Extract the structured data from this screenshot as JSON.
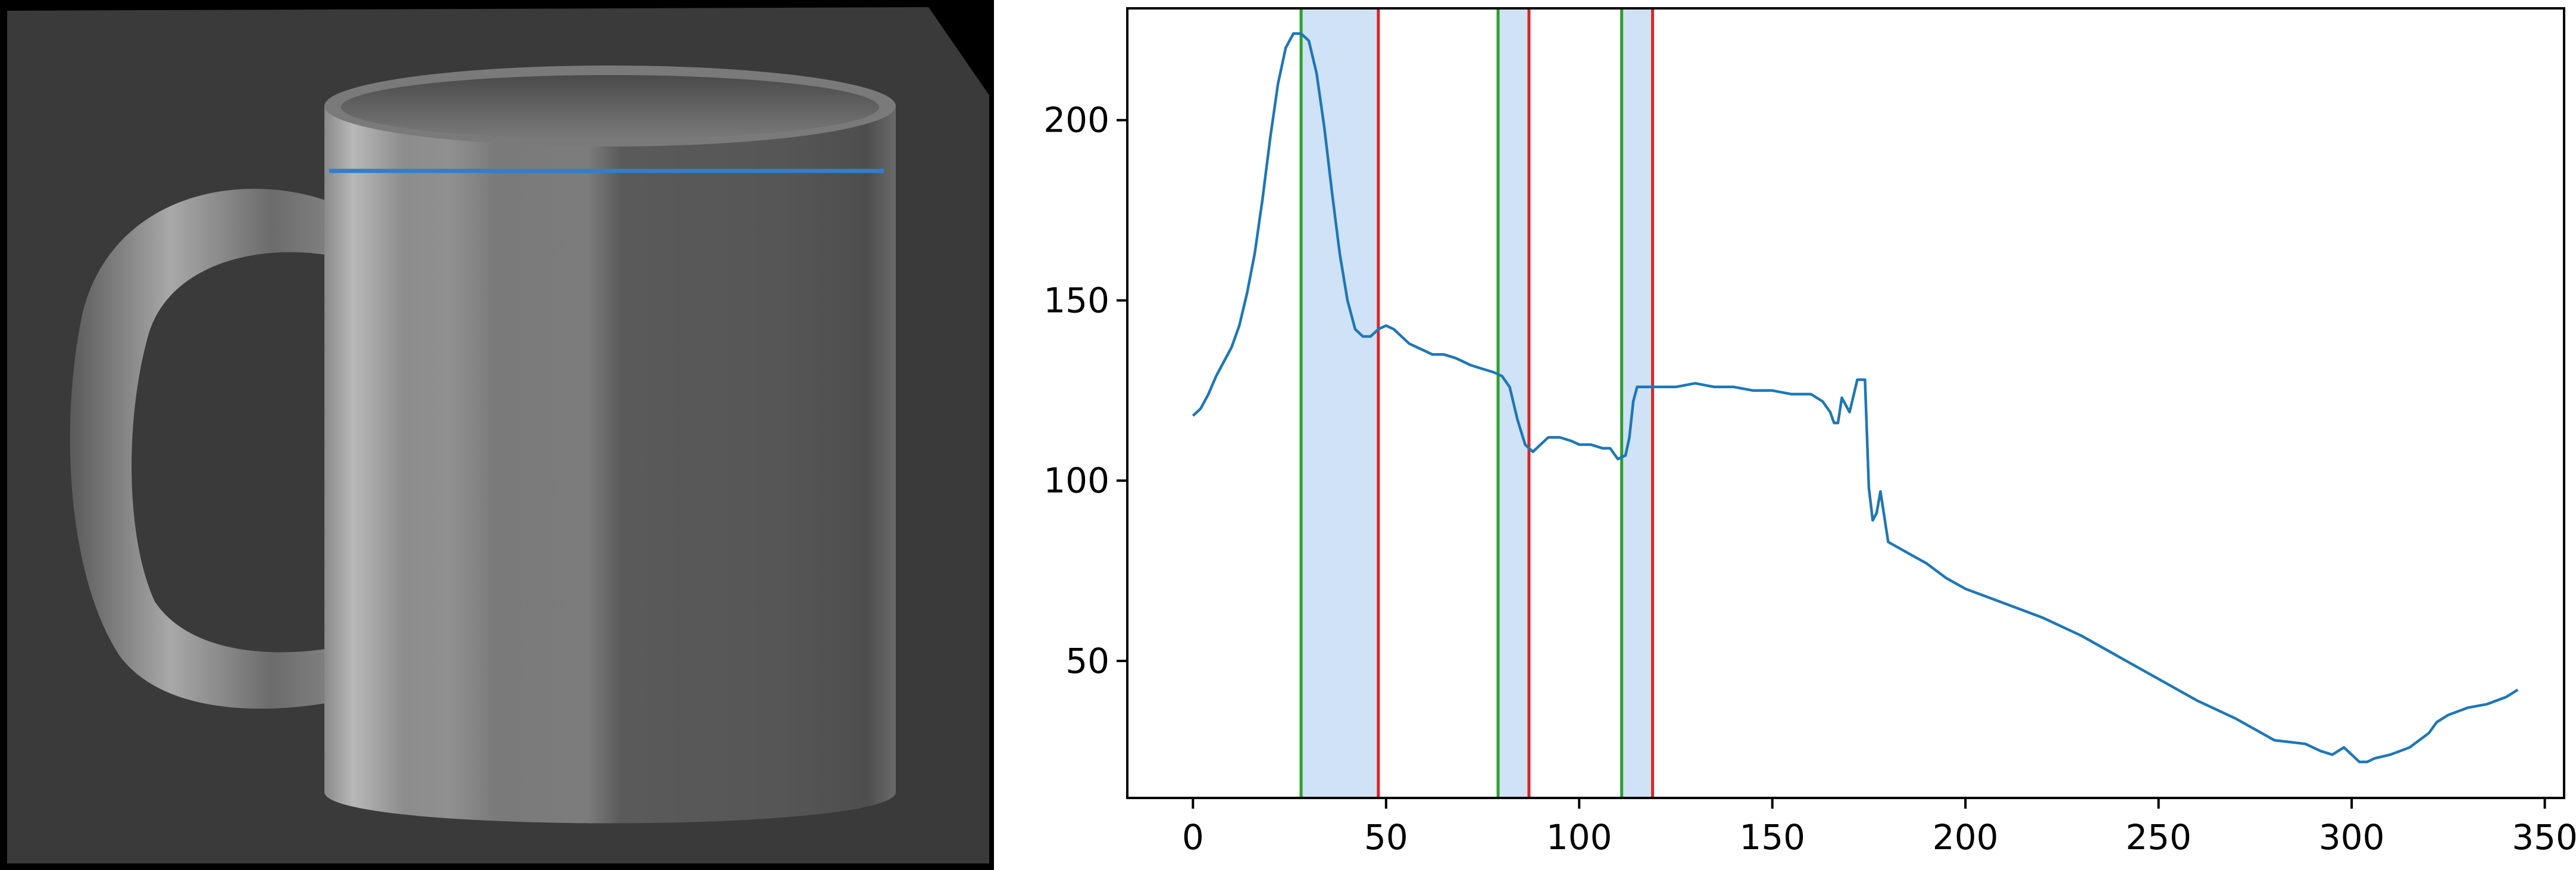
{
  "figure": {
    "left_panel": {
      "content": "3D-rendered mug with a horizontal profile line",
      "background_color": "#000000",
      "mug_color": "#6e6e6e",
      "profile_line_color": "#2f7fd0"
    }
  },
  "chart_data": {
    "type": "line",
    "title": "",
    "xlabel": "",
    "ylabel": "",
    "xlim": [
      -17,
      355
    ],
    "ylim": [
      12,
      231
    ],
    "xticks": [
      0,
      50,
      100,
      150,
      200,
      250,
      300,
      350
    ],
    "yticks": [
      50,
      100,
      150,
      200
    ],
    "grid": false,
    "series": [
      {
        "color": "#1f77b4",
        "x": [
          0,
          2,
          4,
          6,
          8,
          10,
          12,
          14,
          16,
          18,
          20,
          22,
          24,
          26,
          28,
          30,
          32,
          34,
          36,
          38,
          40,
          42,
          44,
          46,
          48,
          50,
          52,
          54,
          56,
          58,
          60,
          62,
          65,
          68,
          72,
          75,
          78,
          80,
          82,
          84,
          86,
          88,
          90,
          92,
          95,
          98,
          100,
          103,
          106,
          108,
          110,
          112,
          113,
          114,
          115,
          116,
          117,
          118,
          120,
          125,
          130,
          135,
          140,
          145,
          150,
          155,
          160,
          163,
          165,
          166,
          167,
          168,
          170,
          172,
          173,
          174,
          175,
          176,
          177,
          178,
          180,
          185,
          190,
          195,
          200,
          210,
          220,
          230,
          240,
          250,
          260,
          270,
          280,
          288,
          292,
          295,
          298,
          300,
          302,
          304,
          306,
          310,
          315,
          320,
          322,
          325,
          330,
          335,
          340,
          343
        ],
        "values": [
          118,
          120,
          124,
          129,
          133,
          137,
          143,
          152,
          163,
          178,
          195,
          210,
          220,
          224,
          224,
          222,
          213,
          198,
          180,
          163,
          150,
          142,
          140,
          140,
          142,
          143,
          142,
          140,
          138,
          137,
          136,
          135,
          135,
          134,
          132,
          131,
          130,
          129,
          126,
          117,
          110,
          108,
          110,
          112,
          112,
          111,
          110,
          110,
          109,
          109,
          106,
          107,
          112,
          122,
          126,
          126,
          126,
          126,
          126,
          126,
          127,
          126,
          126,
          125,
          125,
          124,
          124,
          122,
          119,
          116,
          116,
          123,
          119,
          128,
          128,
          128,
          98,
          89,
          91,
          97,
          83,
          80,
          77,
          73,
          70,
          66,
          62,
          57,
          51,
          45,
          39,
          34,
          28,
          27,
          25,
          24,
          26,
          24,
          22,
          22,
          23,
          24,
          26,
          30,
          33,
          35,
          37,
          38,
          40,
          42
        ]
      }
    ],
    "vertical_lines": {
      "green": [
        28,
        79,
        111
      ],
      "red": [
        48,
        87,
        119
      ],
      "green_color": "#2ca02c",
      "red_color": "#d62728"
    },
    "shaded_spans": {
      "color": "#cfe2f6",
      "ranges": [
        [
          28,
          48
        ],
        [
          79,
          87
        ],
        [
          111,
          119
        ]
      ]
    }
  }
}
